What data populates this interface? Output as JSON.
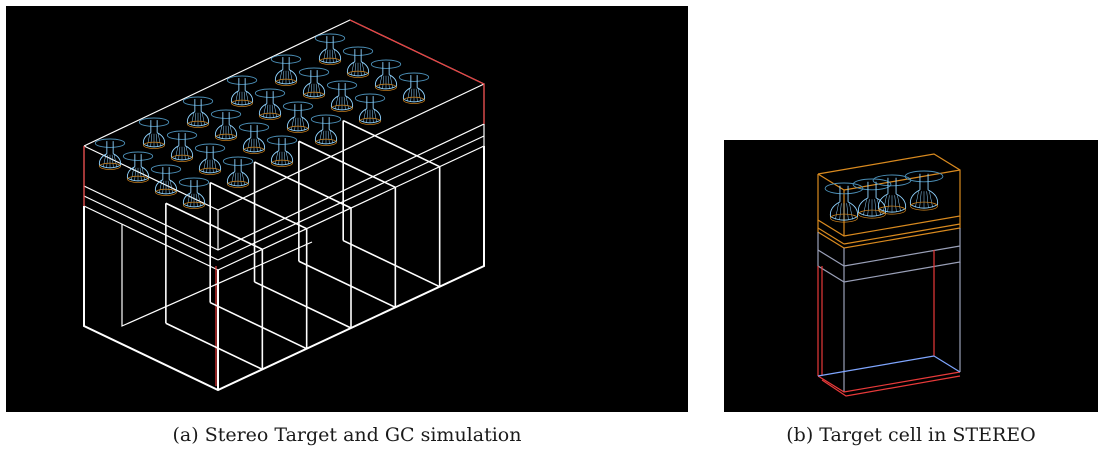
{
  "figure": {
    "panels": [
      {
        "caption": "(a) Stereo Target and GC simulation",
        "subject": "stereo-target-gc-simulation"
      },
      {
        "caption": "(b) Target cell in STEREO",
        "subject": "target-cell"
      }
    ],
    "colors": {
      "background": "#000000",
      "frame": "#ffffff",
      "highlight": "#e83a3a",
      "pmt": "#8fd3ff",
      "acrylic": "#d98a1f",
      "grey": "#9aa0b8"
    }
  }
}
